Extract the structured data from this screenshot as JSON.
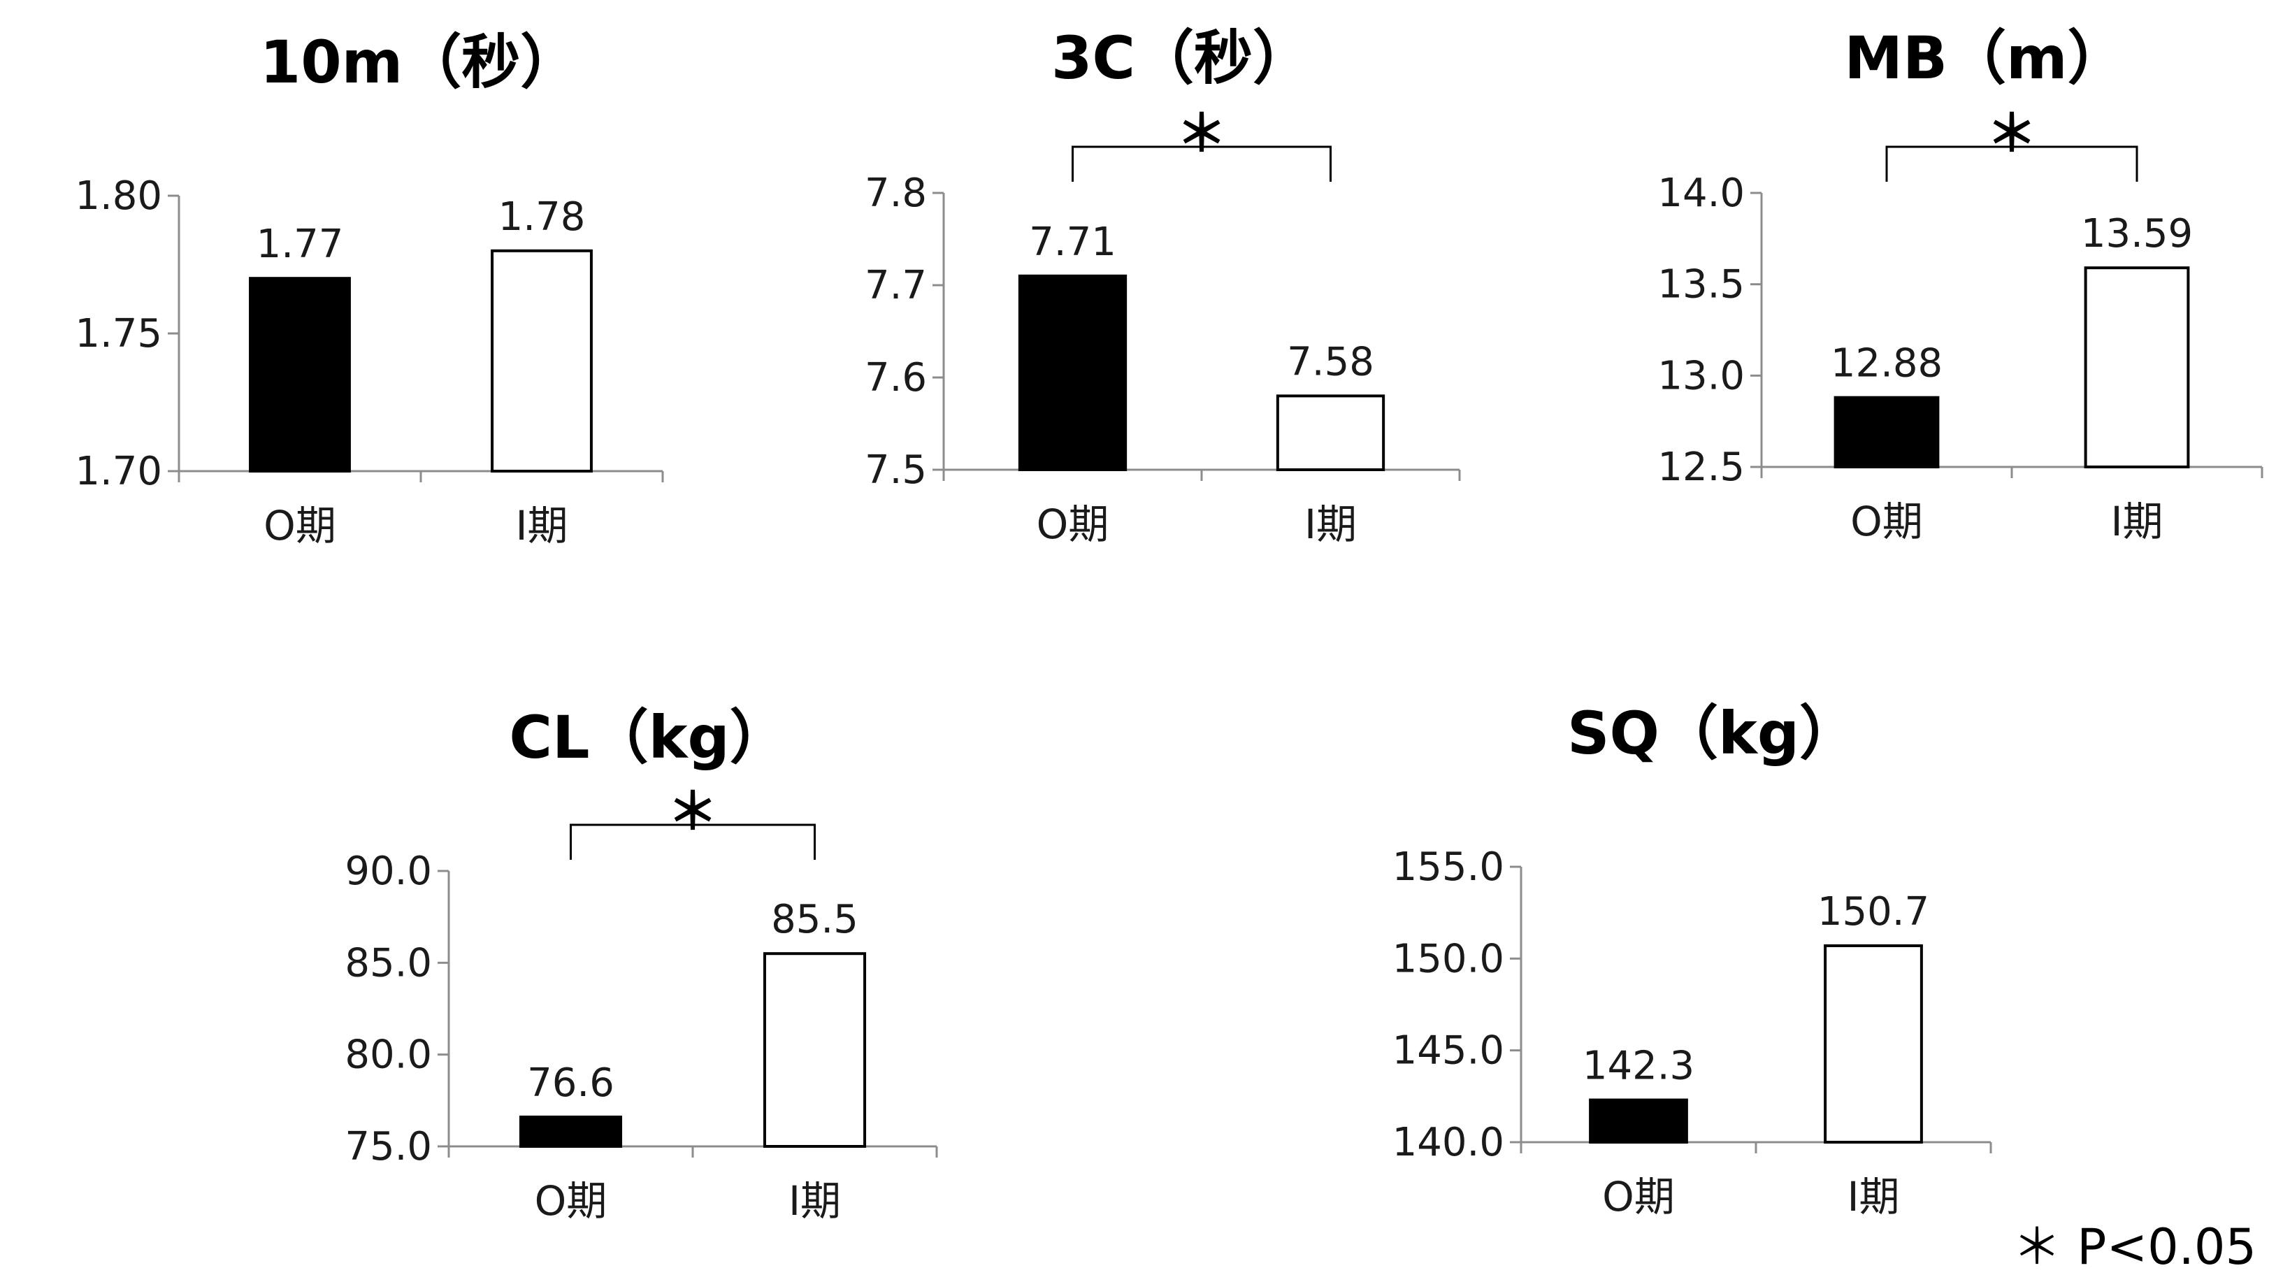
{
  "chart_data": [
    {
      "type": "bar",
      "title": "10m（秒）",
      "categories": [
        "O期",
        "I期"
      ],
      "values": [
        1.77,
        1.78
      ],
      "value_labels": [
        "1.77",
        "1.78"
      ],
      "ylim": [
        1.7,
        1.8
      ],
      "ticks": [
        "1.70",
        "1.75",
        "1.80"
      ],
      "tick_values": [
        1.7,
        1.75,
        1.8
      ],
      "bar_fills": [
        "#000000",
        "#ffffff"
      ],
      "significance": ""
    },
    {
      "type": "bar",
      "title": "3C（秒）",
      "categories": [
        "O期",
        "I期"
      ],
      "values": [
        7.71,
        7.58
      ],
      "value_labels": [
        "7.71",
        "7.58"
      ],
      "ylim": [
        7.5,
        7.8
      ],
      "ticks": [
        "7.5",
        "7.6",
        "7.7",
        "7.8"
      ],
      "tick_values": [
        7.5,
        7.6,
        7.7,
        7.8
      ],
      "bar_fills": [
        "#000000",
        "#ffffff"
      ],
      "significance": "＊"
    },
    {
      "type": "bar",
      "title": "MB（m）",
      "categories": [
        "O期",
        "I期"
      ],
      "values": [
        12.88,
        13.59
      ],
      "value_labels": [
        "12.88",
        "13.59"
      ],
      "ylim": [
        12.5,
        14.0
      ],
      "ticks": [
        "12.5",
        "13.0",
        "13.5",
        "14.0"
      ],
      "tick_values": [
        12.5,
        13.0,
        13.5,
        14.0
      ],
      "bar_fills": [
        "#000000",
        "#ffffff"
      ],
      "significance": "＊"
    },
    {
      "type": "bar",
      "title": "CL（kg）",
      "categories": [
        "O期",
        "I期"
      ],
      "values": [
        76.6,
        85.5
      ],
      "value_labels": [
        "76.6",
        "85.5"
      ],
      "ylim": [
        75.0,
        90.0
      ],
      "ticks": [
        "75.0",
        "80.0",
        "85.0",
        "90.0"
      ],
      "tick_values": [
        75.0,
        80.0,
        85.0,
        90.0
      ],
      "bar_fills": [
        "#000000",
        "#ffffff"
      ],
      "significance": "＊"
    },
    {
      "type": "bar",
      "title": "SQ（kg）",
      "categories": [
        "O期",
        "I期"
      ],
      "values": [
        142.3,
        150.7
      ],
      "value_labels": [
        "142.3",
        "150.7"
      ],
      "ylim": [
        140.0,
        155.0
      ],
      "ticks": [
        "140.0",
        "145.0",
        "150.0",
        "155.0"
      ],
      "tick_values": [
        140.0,
        145.0,
        150.0,
        155.0
      ],
      "bar_fills": [
        "#000000",
        "#ffffff"
      ],
      "significance": ""
    }
  ],
  "footnote": "＊ P<0.05"
}
